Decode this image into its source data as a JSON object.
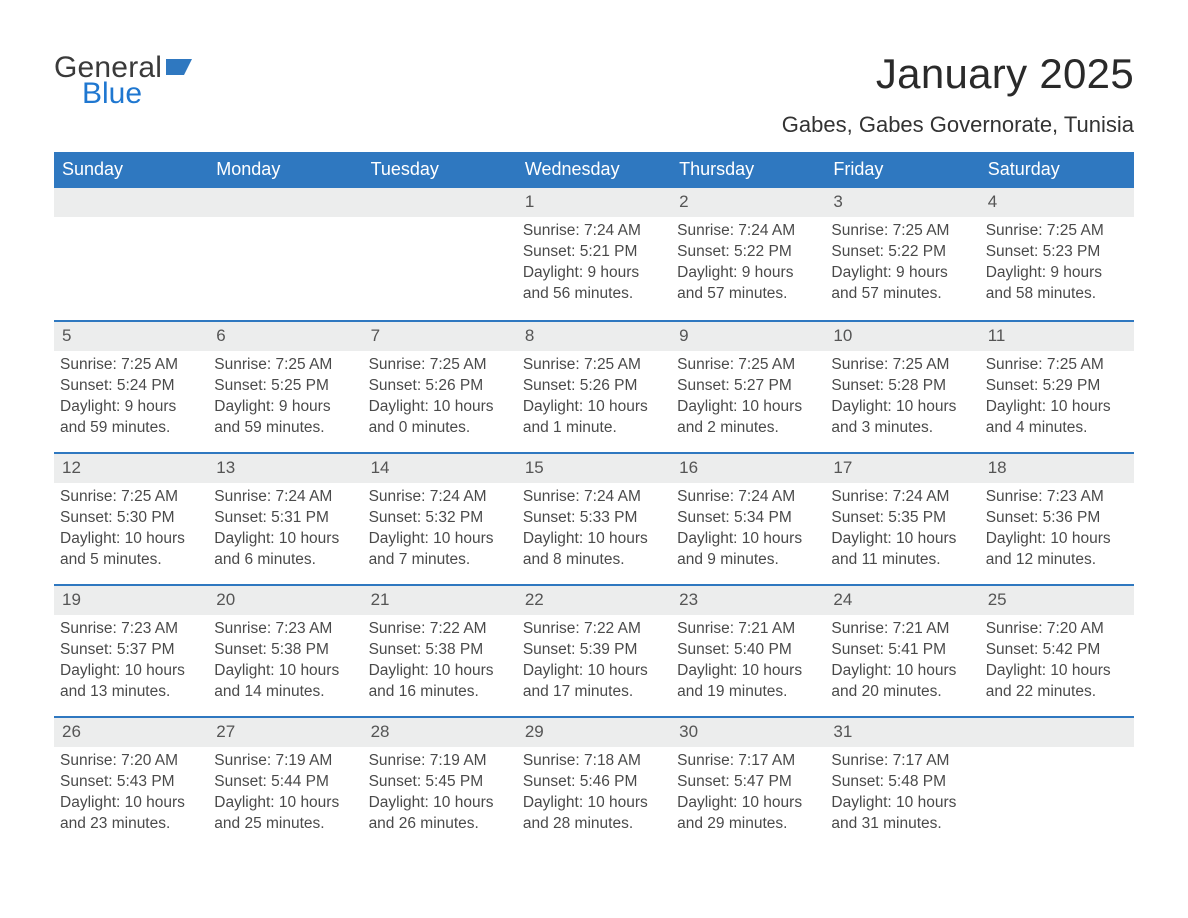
{
  "logo": {
    "word1": "General",
    "word2": "Blue"
  },
  "title": "January 2025",
  "location": "Gabes, Gabes Governorate, Tunisia",
  "colors": {
    "header_bg": "#2f78c0",
    "header_text": "#ffffff",
    "row_accent": "#2f78c0",
    "daynum_bg": "#eceded",
    "text": "#4a4a4a"
  },
  "typography": {
    "title_fontsize": 42,
    "location_fontsize": 22,
    "dow_fontsize": 18,
    "body_fontsize": 15.5
  },
  "labels": {
    "sunrise": "Sunrise:",
    "sunset": "Sunset:",
    "daylight": "Daylight:"
  },
  "daysOfWeek": [
    "Sunday",
    "Monday",
    "Tuesday",
    "Wednesday",
    "Thursday",
    "Friday",
    "Saturday"
  ],
  "weeks": [
    [
      null,
      null,
      null,
      {
        "n": 1,
        "sunrise": "7:24 AM",
        "sunset": "5:21 PM",
        "daylight": "9 hours and 56 minutes."
      },
      {
        "n": 2,
        "sunrise": "7:24 AM",
        "sunset": "5:22 PM",
        "daylight": "9 hours and 57 minutes."
      },
      {
        "n": 3,
        "sunrise": "7:25 AM",
        "sunset": "5:22 PM",
        "daylight": "9 hours and 57 minutes."
      },
      {
        "n": 4,
        "sunrise": "7:25 AM",
        "sunset": "5:23 PM",
        "daylight": "9 hours and 58 minutes."
      }
    ],
    [
      {
        "n": 5,
        "sunrise": "7:25 AM",
        "sunset": "5:24 PM",
        "daylight": "9 hours and 59 minutes."
      },
      {
        "n": 6,
        "sunrise": "7:25 AM",
        "sunset": "5:25 PM",
        "daylight": "9 hours and 59 minutes."
      },
      {
        "n": 7,
        "sunrise": "7:25 AM",
        "sunset": "5:26 PM",
        "daylight": "10 hours and 0 minutes."
      },
      {
        "n": 8,
        "sunrise": "7:25 AM",
        "sunset": "5:26 PM",
        "daylight": "10 hours and 1 minute."
      },
      {
        "n": 9,
        "sunrise": "7:25 AM",
        "sunset": "5:27 PM",
        "daylight": "10 hours and 2 minutes."
      },
      {
        "n": 10,
        "sunrise": "7:25 AM",
        "sunset": "5:28 PM",
        "daylight": "10 hours and 3 minutes."
      },
      {
        "n": 11,
        "sunrise": "7:25 AM",
        "sunset": "5:29 PM",
        "daylight": "10 hours and 4 minutes."
      }
    ],
    [
      {
        "n": 12,
        "sunrise": "7:25 AM",
        "sunset": "5:30 PM",
        "daylight": "10 hours and 5 minutes."
      },
      {
        "n": 13,
        "sunrise": "7:24 AM",
        "sunset": "5:31 PM",
        "daylight": "10 hours and 6 minutes."
      },
      {
        "n": 14,
        "sunrise": "7:24 AM",
        "sunset": "5:32 PM",
        "daylight": "10 hours and 7 minutes."
      },
      {
        "n": 15,
        "sunrise": "7:24 AM",
        "sunset": "5:33 PM",
        "daylight": "10 hours and 8 minutes."
      },
      {
        "n": 16,
        "sunrise": "7:24 AM",
        "sunset": "5:34 PM",
        "daylight": "10 hours and 9 minutes."
      },
      {
        "n": 17,
        "sunrise": "7:24 AM",
        "sunset": "5:35 PM",
        "daylight": "10 hours and 11 minutes."
      },
      {
        "n": 18,
        "sunrise": "7:23 AM",
        "sunset": "5:36 PM",
        "daylight": "10 hours and 12 minutes."
      }
    ],
    [
      {
        "n": 19,
        "sunrise": "7:23 AM",
        "sunset": "5:37 PM",
        "daylight": "10 hours and 13 minutes."
      },
      {
        "n": 20,
        "sunrise": "7:23 AM",
        "sunset": "5:38 PM",
        "daylight": "10 hours and 14 minutes."
      },
      {
        "n": 21,
        "sunrise": "7:22 AM",
        "sunset": "5:38 PM",
        "daylight": "10 hours and 16 minutes."
      },
      {
        "n": 22,
        "sunrise": "7:22 AM",
        "sunset": "5:39 PM",
        "daylight": "10 hours and 17 minutes."
      },
      {
        "n": 23,
        "sunrise": "7:21 AM",
        "sunset": "5:40 PM",
        "daylight": "10 hours and 19 minutes."
      },
      {
        "n": 24,
        "sunrise": "7:21 AM",
        "sunset": "5:41 PM",
        "daylight": "10 hours and 20 minutes."
      },
      {
        "n": 25,
        "sunrise": "7:20 AM",
        "sunset": "5:42 PM",
        "daylight": "10 hours and 22 minutes."
      }
    ],
    [
      {
        "n": 26,
        "sunrise": "7:20 AM",
        "sunset": "5:43 PM",
        "daylight": "10 hours and 23 minutes."
      },
      {
        "n": 27,
        "sunrise": "7:19 AM",
        "sunset": "5:44 PM",
        "daylight": "10 hours and 25 minutes."
      },
      {
        "n": 28,
        "sunrise": "7:19 AM",
        "sunset": "5:45 PM",
        "daylight": "10 hours and 26 minutes."
      },
      {
        "n": 29,
        "sunrise": "7:18 AM",
        "sunset": "5:46 PM",
        "daylight": "10 hours and 28 minutes."
      },
      {
        "n": 30,
        "sunrise": "7:17 AM",
        "sunset": "5:47 PM",
        "daylight": "10 hours and 29 minutes."
      },
      {
        "n": 31,
        "sunrise": "7:17 AM",
        "sunset": "5:48 PM",
        "daylight": "10 hours and 31 minutes."
      },
      null
    ]
  ]
}
